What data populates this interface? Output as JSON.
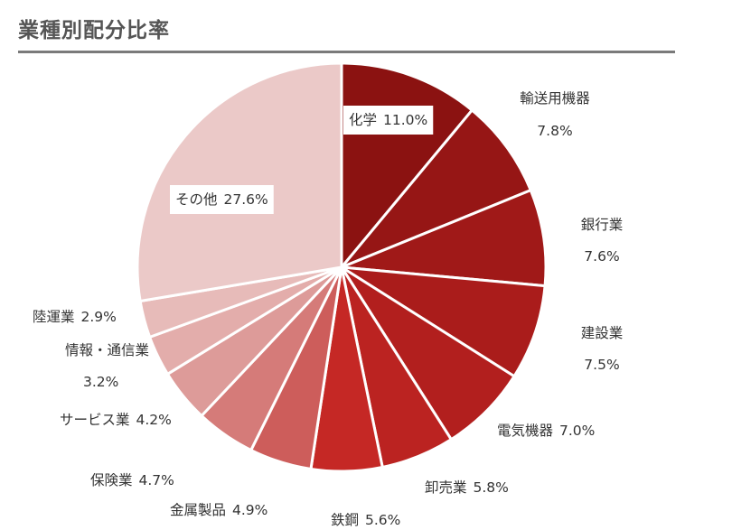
{
  "title": "業種別配分比率",
  "chart_data": {
    "type": "pie",
    "title": "業種別配分比率",
    "start": "12 o'clock",
    "direction": "clockwise",
    "slices": [
      {
        "label": "化学",
        "value": 11.0,
        "value_label": "11.0%",
        "color": "#8b1211"
      },
      {
        "label": "輸送用機器",
        "value": 7.8,
        "value_label": "7.8%",
        "color": "#961615"
      },
      {
        "label": "銀行業",
        "value": 7.6,
        "value_label": "7.6%",
        "color": "#a01918"
      },
      {
        "label": "建設業",
        "value": 7.5,
        "value_label": "7.5%",
        "color": "#aa1c1b"
      },
      {
        "label": "電気機器",
        "value": 7.0,
        "value_label": "7.0%",
        "color": "#b21f1e"
      },
      {
        "label": "卸売業",
        "value": 5.8,
        "value_label": "5.8%",
        "color": "#bb2321"
      },
      {
        "label": "鉄鋼",
        "value": 5.6,
        "value_label": "5.6%",
        "color": "#c52825"
      },
      {
        "label": "金属製品",
        "value": 4.9,
        "value_label": "4.9%",
        "color": "#cd5d5b"
      },
      {
        "label": "保険業",
        "value": 4.7,
        "value_label": "4.7%",
        "color": "#d57b79"
      },
      {
        "label": "サービス業",
        "value": 4.2,
        "value_label": "4.2%",
        "color": "#dd9b99"
      },
      {
        "label": "情報・通信業",
        "value": 3.2,
        "value_label": "3.2%",
        "color": "#e3adab"
      },
      {
        "label": "陸運業",
        "value": 2.9,
        "value_label": "2.9%",
        "color": "#e7bbb9"
      },
      {
        "label": "その他",
        "value": 27.6,
        "value_label": "27.6%",
        "color": "#ebc9c8"
      }
    ]
  }
}
